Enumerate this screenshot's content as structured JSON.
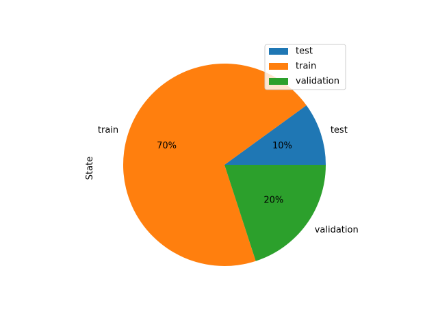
{
  "chart_data": {
    "type": "pie",
    "ylabel": "State",
    "categories": [
      "test",
      "train",
      "validation"
    ],
    "values": [
      10,
      70,
      20
    ],
    "value_labels": [
      "10%",
      "70%",
      "20%"
    ],
    "colors": [
      "#1f77b4",
      "#ff7f0e",
      "#2ca02c"
    ],
    "start_angle_deg": 0,
    "direction": "counterclockwise",
    "legend": {
      "position": "top-right",
      "entries": [
        "test",
        "train",
        "validation"
      ]
    }
  }
}
